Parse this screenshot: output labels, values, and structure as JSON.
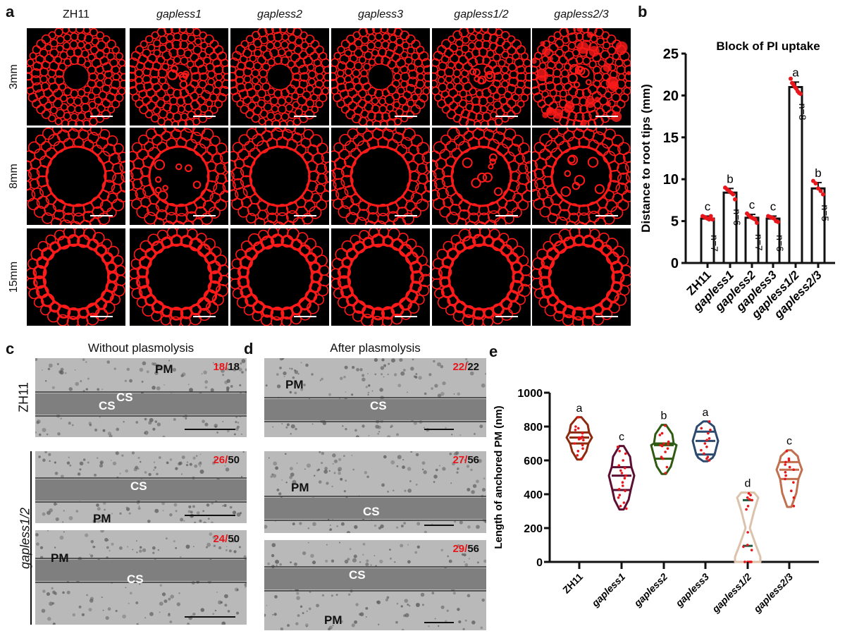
{
  "panel_labels": [
    "a",
    "b",
    "c",
    "d",
    "e"
  ],
  "panel_a": {
    "columns": [
      {
        "label": "ZH11",
        "italic": false
      },
      {
        "label": "gapless1",
        "italic": true
      },
      {
        "label": "gapless2",
        "italic": true
      },
      {
        "label": "gapless3",
        "italic": true
      },
      {
        "label": "gapless1/2",
        "italic": true
      },
      {
        "label": "gapless2/3",
        "italic": true
      }
    ],
    "rows": [
      "3mm",
      "8mm",
      "15mm"
    ],
    "stain_color": "#ff1a1a"
  },
  "panel_c": {
    "title": "Without plasmolysis",
    "row_labels": [
      "ZH11",
      "gapless1/2"
    ],
    "images": [
      {
        "count_red": "18/",
        "count_black": "18",
        "labels": [
          "PM",
          "CS",
          "CS"
        ]
      },
      {
        "count_red": "26/",
        "count_black": "50",
        "labels": [
          "CS",
          "PM"
        ]
      },
      {
        "count_red": "24/",
        "count_black": "50",
        "labels": [
          "PM",
          "CS"
        ]
      }
    ]
  },
  "panel_d": {
    "title": "After plasmolysis",
    "images": [
      {
        "count_red": "22/",
        "count_black": "22",
        "labels": [
          "PM",
          "CS"
        ]
      },
      {
        "count_red": "27/",
        "count_black": "56",
        "labels": [
          "PM",
          "CS"
        ]
      },
      {
        "count_red": "29/",
        "count_black": "56",
        "labels": [
          "CS",
          "PM"
        ]
      }
    ]
  },
  "chart_data": [
    {
      "type": "bar",
      "title": "Block of PI uptake",
      "xlabel": "",
      "ylabel": "Distance to root tips (mm)",
      "ylim": [
        0,
        25
      ],
      "yticks": [
        0,
        5,
        10,
        15,
        20,
        25
      ],
      "categories": [
        "ZH11",
        "gapless1",
        "gapless2",
        "gapless3",
        "gapless1/2",
        "gapless2/3"
      ],
      "values": [
        5.3,
        8.4,
        5.4,
        5.3,
        21.0,
        8.9
      ],
      "errors": [
        0.3,
        0.5,
        0.4,
        0.3,
        0.6,
        0.7
      ],
      "sig_letters": [
        "c",
        "b",
        "c",
        "c",
        "a",
        "b"
      ],
      "n_labels": [
        "n=7",
        "n=6",
        "n=7",
        "n=6",
        "n=8",
        "n=5"
      ],
      "points": [
        [
          5.6,
          5.5,
          5.4,
          5.3,
          5.2,
          5.6,
          5.2
        ],
        [
          9.0,
          8.8,
          8.6,
          8.4,
          8.2,
          7.6
        ],
        [
          5.9,
          5.7,
          5.5,
          5.4,
          5.3,
          5.2,
          4.8
        ],
        [
          5.6,
          5.5,
          5.4,
          5.3,
          5.0,
          4.9
        ],
        [
          22.0,
          21.5,
          21.3,
          21.0,
          20.8,
          20.5,
          20.3,
          20.2
        ],
        [
          9.8,
          9.5,
          8.9,
          8.6,
          8.2
        ]
      ],
      "grid": false,
      "bar_color": "#ffffff",
      "point_color": "#e8161b"
    },
    {
      "type": "violin",
      "title": "",
      "xlabel": "",
      "ylabel": "Length of anchored PM (nm)",
      "ylim": [
        0,
        1000
      ],
      "yticks": [
        0,
        200,
        400,
        600,
        800,
        1000
      ],
      "categories": [
        "ZH11",
        "gapless1",
        "gapless2",
        "gapless3",
        "gapless1/2",
        "gapless2/3"
      ],
      "sig_letters": [
        "a",
        "c",
        "b",
        "a",
        "d",
        "c"
      ],
      "summary": [
        {
          "min": 605,
          "q1": 700,
          "median": 735,
          "q3": 765,
          "max": 855,
          "color": "#8b2a0e"
        },
        {
          "min": 310,
          "q1": 425,
          "median": 510,
          "q3": 560,
          "max": 685,
          "color": "#5c0f33"
        },
        {
          "min": 520,
          "q1": 610,
          "median": 690,
          "q3": 700,
          "max": 810,
          "color": "#2e5a12"
        },
        {
          "min": 595,
          "q1": 635,
          "median": 715,
          "q3": 770,
          "max": 830,
          "color": "#2c4a6e"
        },
        {
          "min": 0,
          "q1": 95,
          "median": null,
          "q3": 365,
          "max": 410,
          "color": "#dcc2ab"
        },
        {
          "min": 325,
          "q1": 490,
          "median": 545,
          "q3": 590,
          "max": 660,
          "color": "#c0704e"
        }
      ],
      "points": [
        [
          855,
          800,
          790,
          780,
          760,
          740,
          735,
          730,
          725,
          720,
          700,
          690,
          670,
          655,
          630,
          610
        ],
        [
          680,
          655,
          640,
          600,
          570,
          555,
          540,
          525,
          510,
          495,
          470,
          450,
          430,
          420,
          395,
          380,
          350,
          330,
          315
        ],
        [
          805,
          760,
          750,
          710,
          700,
          695,
          690,
          685,
          670,
          650,
          620,
          610,
          560,
          525
        ],
        [
          830,
          790,
          780,
          760,
          730,
          720,
          700,
          680,
          660,
          640,
          620,
          610,
          600
        ],
        [
          405,
          395,
          380,
          370,
          365,
          330,
          310,
          175,
          100,
          90,
          70,
          0,
          0,
          0,
          0,
          0,
          0,
          0,
          0
        ],
        [
          655,
          610,
          600,
          590,
          575,
          560,
          545,
          530,
          510,
          490,
          470,
          420,
          380,
          330
        ]
      ],
      "median_line_color_gapless1_2": "#1f5a3f",
      "point_color": "#e8161b",
      "grid": false
    }
  ]
}
